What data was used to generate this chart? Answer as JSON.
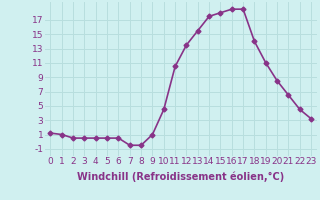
{
  "x": [
    0,
    1,
    2,
    3,
    4,
    5,
    6,
    7,
    8,
    9,
    10,
    11,
    12,
    13,
    14,
    15,
    16,
    17,
    18,
    19,
    20,
    21,
    22,
    23
  ],
  "y": [
    1.2,
    1.0,
    0.5,
    0.5,
    0.5,
    0.5,
    0.5,
    -0.5,
    -0.5,
    1.0,
    4.5,
    10.5,
    13.5,
    15.5,
    17.5,
    18.0,
    18.5,
    18.5,
    14.0,
    11.0,
    8.5,
    6.5,
    4.5,
    3.2
  ],
  "line_color": "#883388",
  "marker": "D",
  "marker_size": 2.5,
  "background_color": "#d0f0f0",
  "grid_color": "#b8dede",
  "xlabel": "Windchill (Refroidissement éolien,°C)",
  "xlabel_fontsize": 7,
  "ylabel_ticks": [
    -1,
    1,
    3,
    5,
    7,
    9,
    11,
    13,
    15,
    17
  ],
  "xtick_labels": [
    "0",
    "1",
    "2",
    "3",
    "4",
    "5",
    "6",
    "7",
    "8",
    "9",
    "10",
    "11",
    "12",
    "13",
    "14",
    "15",
    "16",
    "17",
    "18",
    "19",
    "20",
    "21",
    "22",
    "23"
  ],
  "ylim": [
    -2.0,
    19.5
  ],
  "xlim": [
    -0.5,
    23.5
  ],
  "tick_fontsize": 6.5,
  "linewidth": 1.2
}
